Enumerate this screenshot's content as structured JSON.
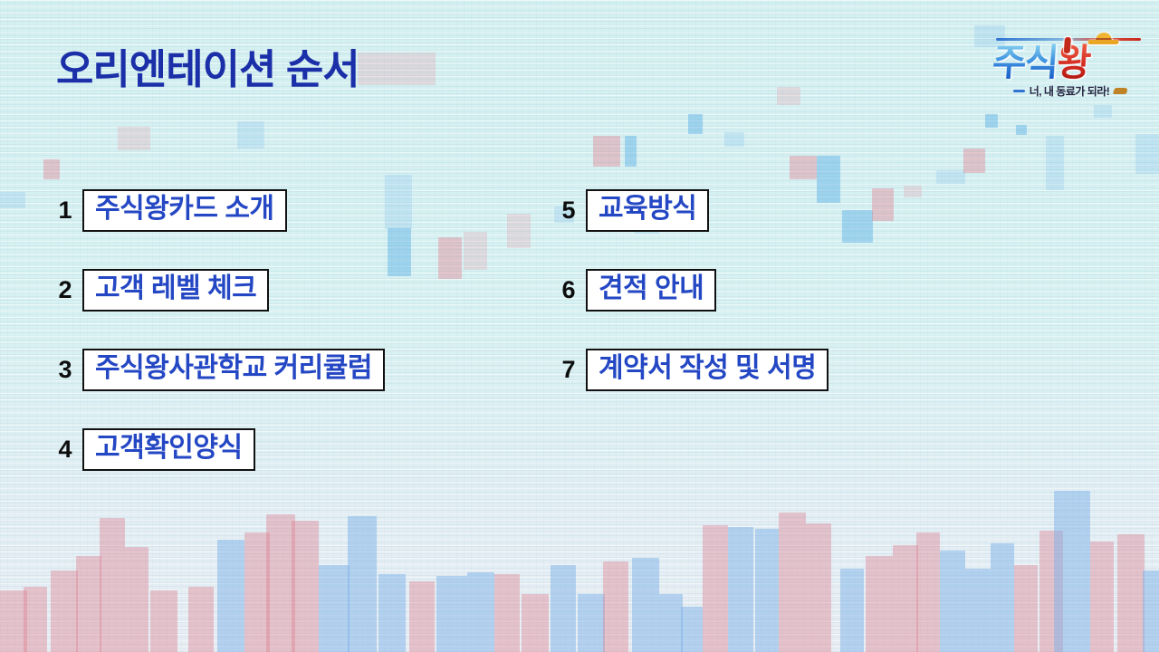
{
  "slide": {
    "title": "오리엔테이션 순서"
  },
  "logo": {
    "brand_blue": "주식",
    "brand_red": "왕",
    "tagline": "너, 내 동료가 되라!"
  },
  "agenda": {
    "left": [
      {
        "num": "1",
        "label": "주식왕카드 소개"
      },
      {
        "num": "2",
        "label": "고객 레벨 체크"
      },
      {
        "num": "3",
        "label": "주식왕사관학교 커리큘럼"
      },
      {
        "num": "4",
        "label": "고객확인양식"
      }
    ],
    "right": [
      {
        "num": "5",
        "label": "교육방식"
      },
      {
        "num": "6",
        "label": "견적 안내"
      },
      {
        "num": "7",
        "label": "계약서 작성 및 서명"
      }
    ]
  },
  "colors": {
    "title_blue": "#1b2fa8",
    "item_blue": "#2447c4",
    "logo_red": "#d0281e",
    "background": "#d8f1f2"
  }
}
